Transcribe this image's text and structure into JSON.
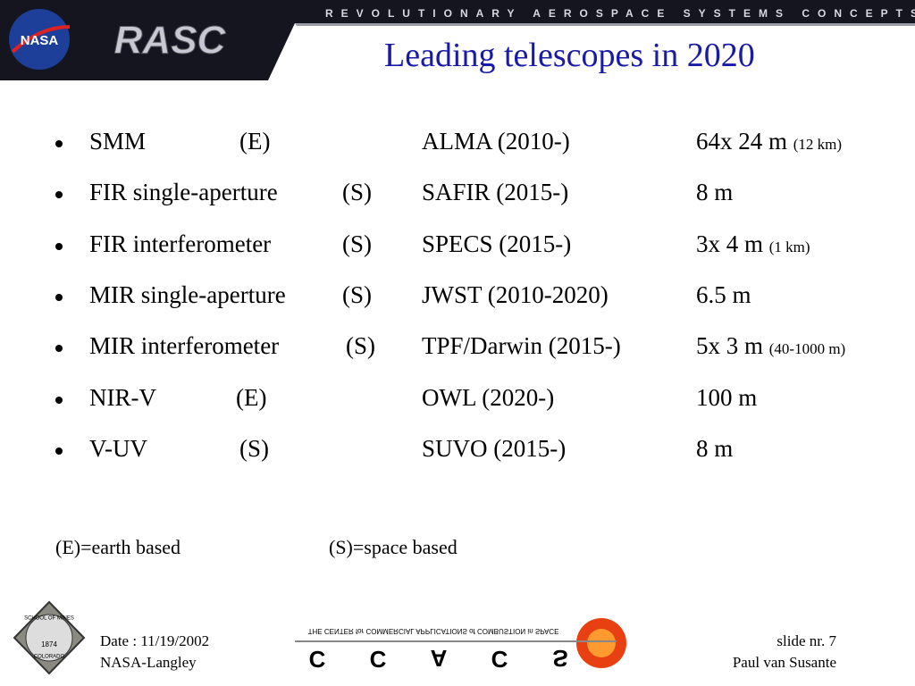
{
  "header": {
    "banner": "REVOLUTIONARY AEROSPACE SYSTEMS CONCEPTS",
    "nasa_logo": "NASA",
    "rasc_logo": "RASC",
    "title": "Leading telescopes in 2020"
  },
  "rows": [
    {
      "type": "SMM",
      "site": "(E)",
      "mission": "ALMA (2010-)",
      "size": "64x 24 m",
      "note": "(12 km)"
    },
    {
      "type": "FIR single-aperture",
      "site": "(S)",
      "mission": "SAFIR (2015-)",
      "size": "8 m"
    },
    {
      "type": "FIR interferometer",
      "site": "(S)",
      "mission": "SPECS (2015-)",
      "size": "3x 4 m",
      "note": "(1 km)"
    },
    {
      "type": "MIR single-aperture",
      "site": "(S)",
      "mission": "JWST (2010-2020)",
      "size": "6.5 m"
    },
    {
      "type": "MIR interferometer",
      "site": "(S)",
      "mission": "TPF/Darwin (2015-)",
      "size": "5x 3 m",
      "note": "(40-1000 m)"
    },
    {
      "type": "NIR-V",
      "site": "(E)",
      "mission": "OWL (2020-)",
      "size": "100 m"
    },
    {
      "type": "V-UV",
      "site": "(S)",
      "mission": "SUVO (2015-)",
      "size": "8 m"
    }
  ],
  "legend": {
    "earth": "(E)=earth based",
    "space": "(S)=space based"
  },
  "footer": {
    "school_logo": {
      "top": "SCHOOL OF MINES",
      "year": "1874",
      "bottom": "COLORADO"
    },
    "date": "Date : 11/19/2002",
    "org": "NASA-Langley",
    "ccacs_caption": "THE CENTER for COMMERCIAL APPLICATIONS of COMBUSTION in SPACE",
    "ccacs_letters": [
      "C",
      "C",
      "A",
      "C",
      "S"
    ],
    "slide": "slide nr. 7",
    "author": "Paul van Susante"
  }
}
